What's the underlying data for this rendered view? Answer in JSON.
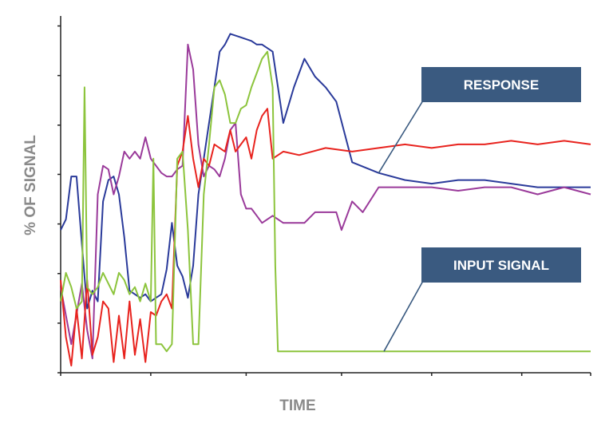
{
  "chart_data": {
    "type": "line",
    "xlabel": "TIME",
    "ylabel": "% OF SIGNAL",
    "xlim": [
      0,
      100
    ],
    "ylim": [
      0,
      100
    ],
    "grid": false,
    "x_ticks": [
      0,
      17,
      35,
      53,
      70,
      87,
      100
    ],
    "y_ticks": [
      0,
      13.9,
      27.8,
      41.7,
      55.6,
      69.4,
      83.3,
      97.2
    ],
    "callouts": [
      {
        "label": "RESPONSE",
        "color": "#3a5a80",
        "target_series": "blue"
      },
      {
        "label": "INPUT SIGNAL",
        "color": "#3a5a80",
        "target_series": "green"
      }
    ],
    "series": [
      {
        "color": "#2a3a9a",
        "key": "blue",
        "x": [
          0,
          1,
          2,
          3,
          4,
          5,
          6,
          7,
          8,
          9,
          10,
          11,
          12,
          13,
          14,
          15,
          16,
          17,
          18,
          19,
          20,
          21,
          22,
          23,
          24,
          25,
          26,
          27,
          28,
          29,
          30,
          31,
          32,
          34,
          36,
          37,
          38,
          40,
          42,
          44,
          46,
          48,
          50,
          52,
          55,
          60,
          65,
          70,
          75,
          80,
          85,
          90,
          95,
          100
        ],
        "y": [
          40,
          43,
          55,
          55,
          36,
          18,
          23,
          20,
          48,
          54,
          55,
          50,
          38,
          23,
          22,
          21,
          22,
          20,
          21,
          22,
          29,
          42,
          30,
          27,
          21,
          30,
          50,
          60,
          70,
          80,
          90,
          92,
          95,
          94,
          93,
          92,
          92,
          90,
          70,
          80,
          88,
          83,
          80,
          76,
          59,
          56,
          54,
          53,
          54,
          54,
          53,
          52,
          52,
          52
        ]
      },
      {
        "color": "#9a3a9a",
        "key": "purple",
        "x": [
          0,
          2,
          4,
          5,
          6,
          7,
          8,
          9,
          10,
          11,
          12,
          13,
          14,
          15,
          16,
          17,
          18,
          19,
          20,
          21,
          22,
          23,
          24,
          25,
          26,
          27,
          28,
          29,
          30,
          31,
          32,
          33,
          34,
          35,
          36,
          37,
          38,
          40,
          42,
          44,
          46,
          48,
          50,
          52,
          53,
          55,
          57,
          60,
          65,
          70,
          75,
          80,
          85,
          90,
          95,
          100
        ],
        "y": [
          24,
          8,
          25,
          12,
          4,
          50,
          58,
          57,
          50,
          55,
          62,
          60,
          62,
          60,
          66,
          60,
          58,
          56,
          55,
          55,
          57,
          58,
          92,
          85,
          64,
          55,
          58,
          57,
          55,
          60,
          68,
          70,
          50,
          46,
          46,
          44,
          42,
          44,
          42,
          42,
          42,
          45,
          45,
          45,
          40,
          48,
          45,
          52,
          52,
          52,
          51,
          52,
          52,
          50,
          52,
          50
        ]
      },
      {
        "color": "#e8231e",
        "key": "red",
        "x": [
          0,
          1,
          2,
          3,
          4,
          5,
          6,
          7,
          8,
          9,
          10,
          11,
          12,
          13,
          14,
          15,
          16,
          17,
          18,
          19,
          20,
          21,
          22,
          23,
          24,
          25,
          26,
          27,
          28,
          29,
          30,
          31,
          32,
          33,
          34,
          35,
          36,
          37,
          38,
          39,
          40,
          42,
          45,
          50,
          55,
          60,
          65,
          70,
          75,
          80,
          85,
          90,
          95,
          100
        ],
        "y": [
          26,
          10,
          2,
          18,
          4,
          26,
          5,
          10,
          20,
          18,
          3,
          16,
          4,
          20,
          5,
          15,
          3,
          17,
          16,
          20,
          22,
          18,
          58,
          62,
          72,
          60,
          52,
          60,
          58,
          64,
          63,
          62,
          68,
          62,
          64,
          66,
          60,
          68,
          72,
          74,
          60,
          62,
          61,
          63,
          62,
          63,
          64,
          63,
          64,
          64,
          65,
          64,
          65,
          64
        ]
      },
      {
        "color": "#8cc43c",
        "key": "green",
        "x": [
          0,
          1,
          2,
          3,
          4,
          4.5,
          5,
          6,
          7,
          8,
          9,
          10,
          11,
          12,
          13,
          14,
          15,
          16,
          17,
          17.5,
          18,
          19,
          20,
          21,
          22,
          23,
          24,
          25,
          26,
          27,
          28,
          29,
          30,
          31,
          32,
          33,
          34,
          35,
          36,
          37,
          38,
          39,
          40,
          40.5,
          41,
          42,
          50,
          60,
          70,
          80,
          90,
          100
        ],
        "y": [
          20,
          28,
          24,
          18,
          20,
          80,
          24,
          22,
          24,
          28,
          25,
          22,
          28,
          26,
          22,
          24,
          20,
          25,
          20,
          60,
          8,
          8,
          6,
          8,
          60,
          62,
          40,
          8,
          8,
          50,
          64,
          80,
          82,
          78,
          70,
          70,
          74,
          75,
          80,
          84,
          88,
          90,
          80,
          30,
          6,
          6,
          6,
          6,
          6,
          6,
          6,
          6
        ]
      }
    ]
  }
}
